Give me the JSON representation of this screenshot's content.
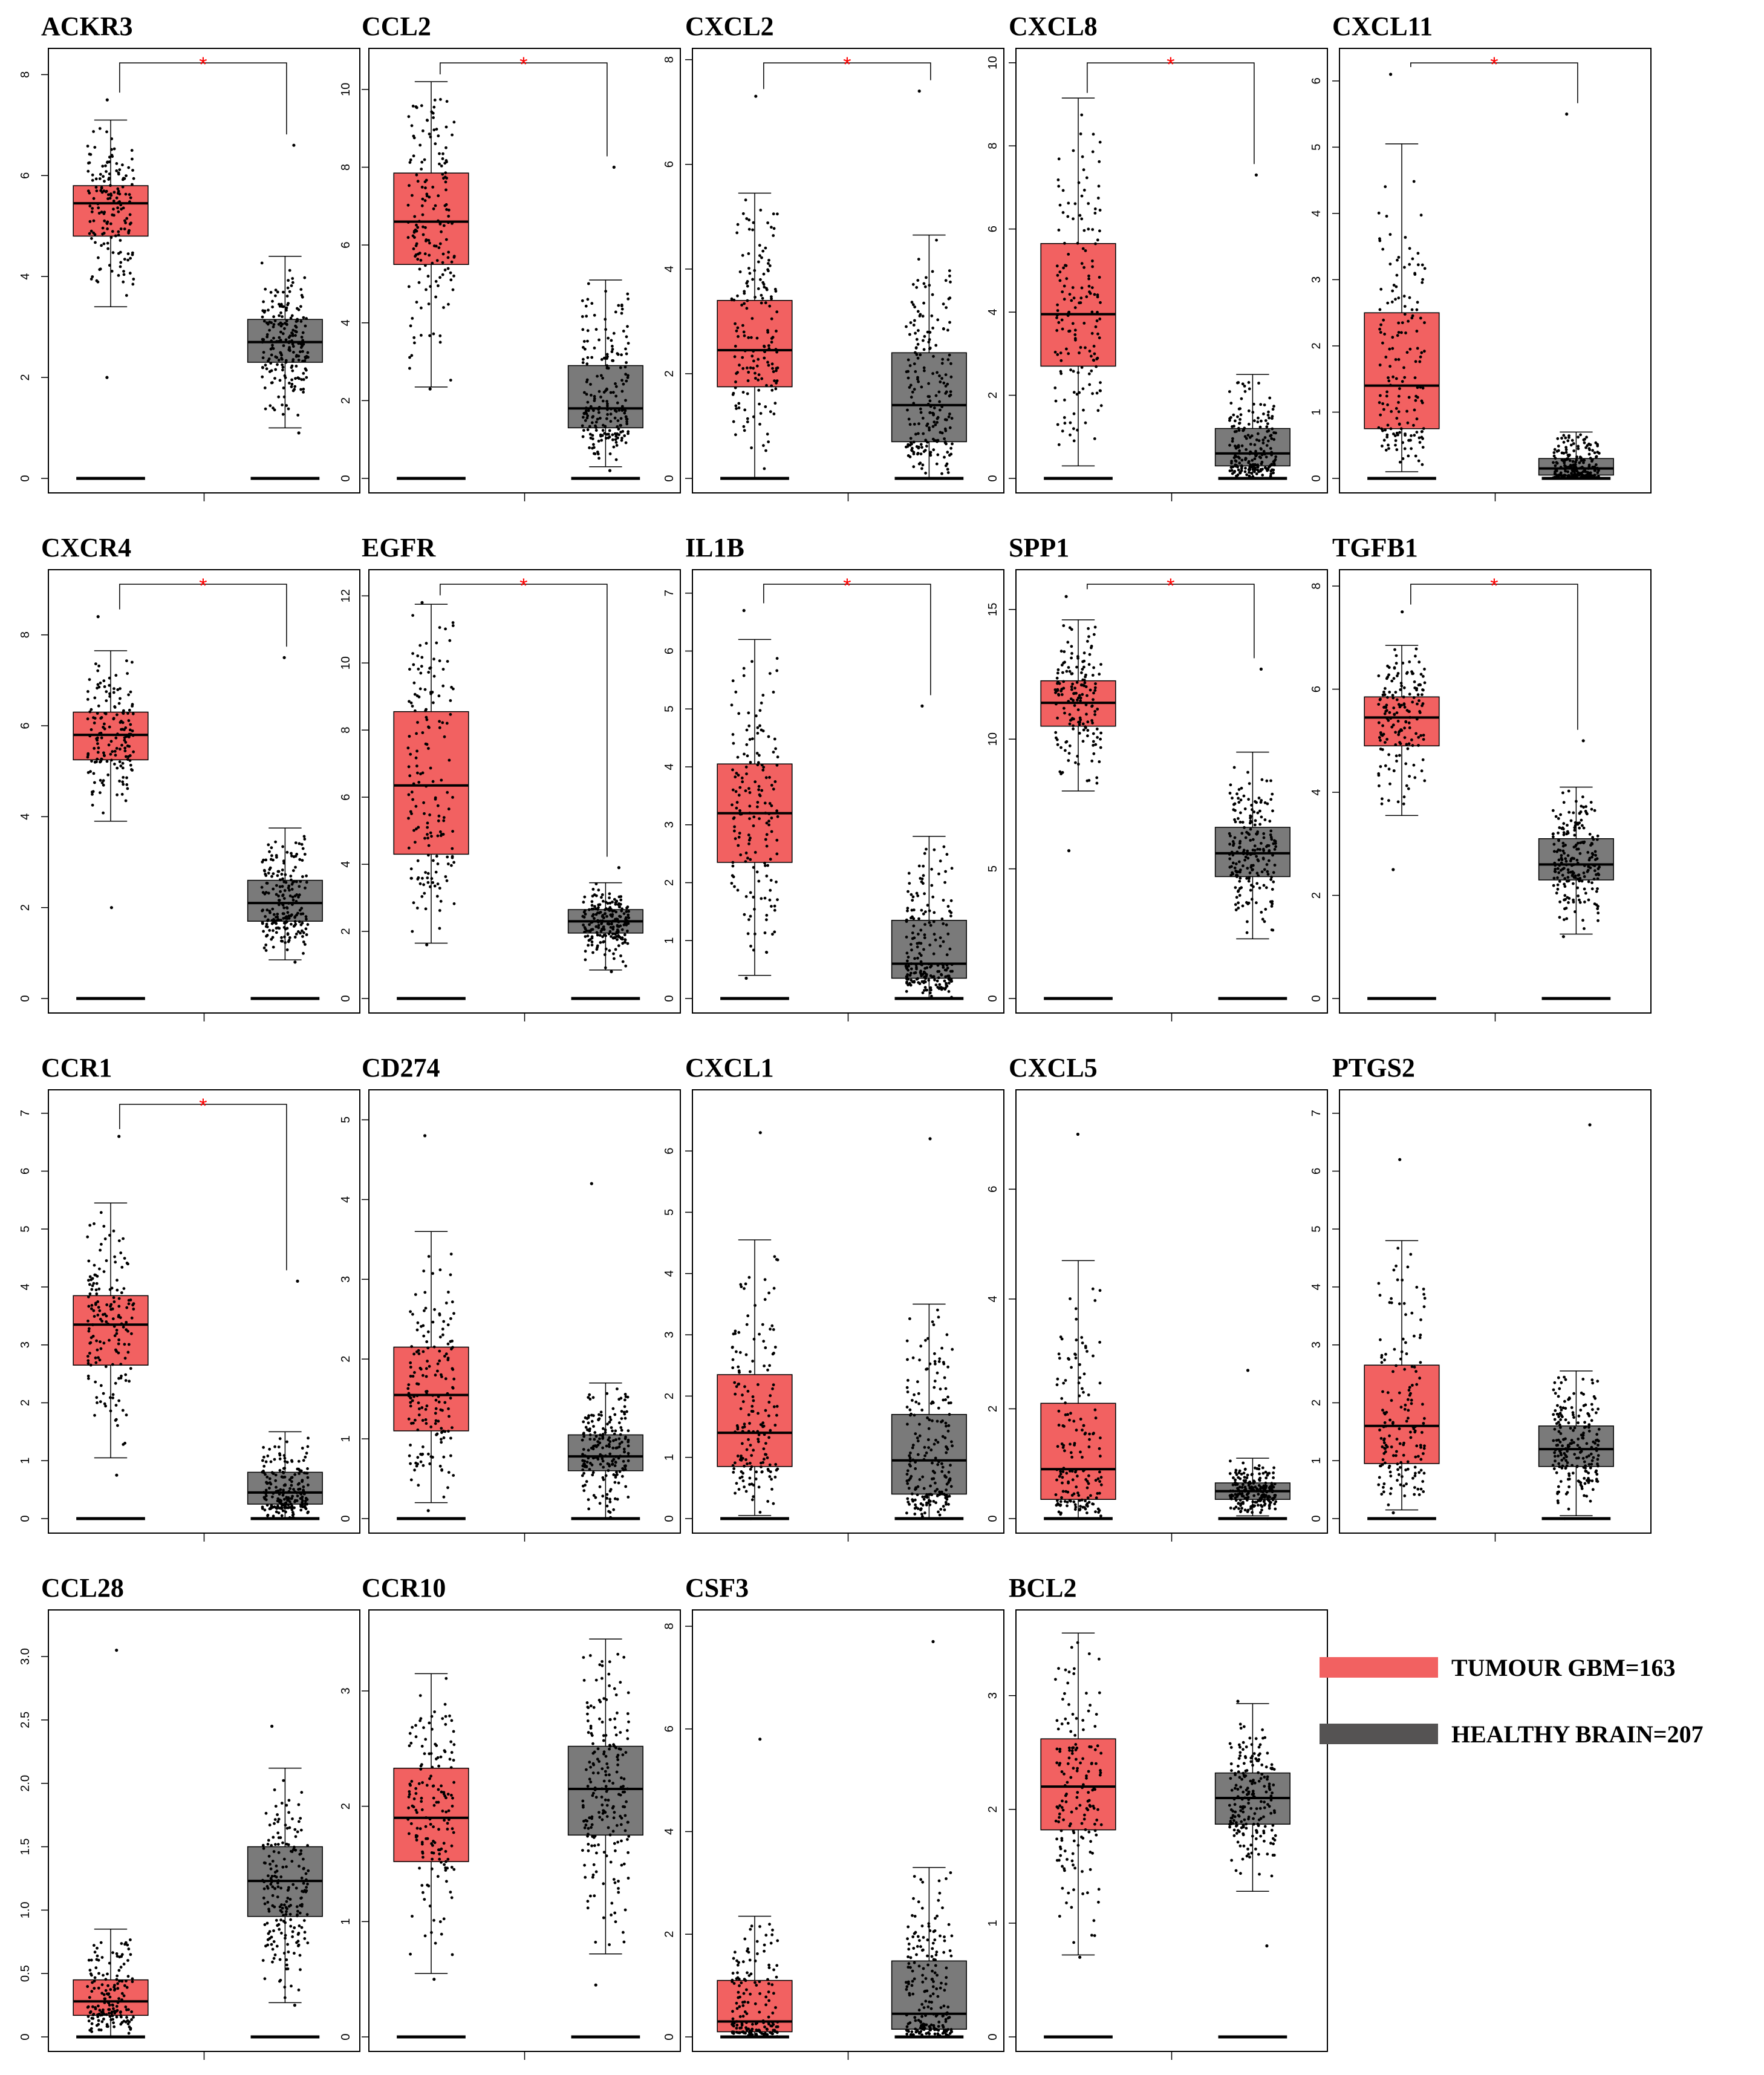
{
  "colors": {
    "tumour": "#f26161",
    "healthy": "#7a7a7a",
    "legend_healthy": "#555353",
    "significance": "#ff0000"
  },
  "legend": [
    {
      "label": "TUMOUR GBM=163",
      "color": "#f26161"
    },
    {
      "label": "HEALTHY BRAIN=207",
      "color": "#555353"
    }
  ],
  "chart_data": [
    {
      "type": "box",
      "title": "ACKR3",
      "significant": true,
      "yticks": [
        "0",
        "2",
        "4",
        "6",
        "8"
      ],
      "ylim": [
        0,
        8.4
      ],
      "tumour": {
        "min": 3.4,
        "q1": 4.8,
        "median": 5.45,
        "q3": 5.8,
        "max": 7.1,
        "range": [
          2.0,
          7.5
        ]
      },
      "healthy": {
        "min": 1.0,
        "q1": 2.3,
        "median": 2.7,
        "q3": 3.15,
        "max": 4.4,
        "range": [
          0.9,
          6.6
        ]
      }
    },
    {
      "type": "box",
      "title": "CCL2",
      "significant": true,
      "yticks": [
        "0",
        "2",
        "4",
        "6",
        "8",
        "10"
      ],
      "ylim": [
        0,
        10.9
      ],
      "tumour": {
        "min": 2.35,
        "q1": 5.5,
        "median": 6.6,
        "q3": 7.85,
        "max": 10.2,
        "range": [
          2.3,
          10.2
        ]
      },
      "healthy": {
        "min": 0.3,
        "q1": 1.3,
        "median": 1.8,
        "q3": 2.9,
        "max": 5.1,
        "range": [
          0.2,
          8.0
        ]
      }
    },
    {
      "type": "box",
      "title": "CXCL2",
      "significant": true,
      "yticks": [
        "0",
        "2",
        "4",
        "6",
        "8"
      ],
      "ylim": [
        0,
        8.1
      ],
      "tumour": {
        "min": 0.0,
        "q1": 1.75,
        "median": 2.45,
        "q3": 3.4,
        "max": 5.45,
        "range": [
          0.0,
          7.3
        ]
      },
      "healthy": {
        "min": 0.0,
        "q1": 0.7,
        "median": 1.4,
        "q3": 2.4,
        "max": 4.65,
        "range": [
          0.0,
          7.4
        ]
      }
    },
    {
      "type": "box",
      "title": "CXCL8",
      "significant": true,
      "yticks": [
        "0",
        "2",
        "4",
        "6",
        "8",
        "10"
      ],
      "ylim": [
        0,
        10.2
      ],
      "tumour": {
        "min": 0.3,
        "q1": 2.7,
        "median": 3.95,
        "q3": 5.65,
        "max": 9.15,
        "range": [
          0.3,
          9.1
        ]
      },
      "healthy": {
        "min": 0.0,
        "q1": 0.3,
        "median": 0.6,
        "q3": 1.2,
        "max": 2.5,
        "range": [
          0.0,
          7.3
        ]
      }
    },
    {
      "type": "box",
      "title": "CXCL11",
      "significant": true,
      "yticks": [
        "0",
        "1",
        "2",
        "3",
        "4",
        "5",
        "6"
      ],
      "ylim": [
        0,
        6.4
      ],
      "tumour": {
        "min": 0.1,
        "q1": 0.75,
        "median": 1.4,
        "q3": 2.5,
        "max": 5.05,
        "range": [
          0.1,
          6.1
        ]
      },
      "healthy": {
        "min": 0.0,
        "q1": 0.05,
        "median": 0.15,
        "q3": 0.3,
        "max": 0.7,
        "range": [
          0.0,
          5.5
        ]
      }
    },
    {
      "type": "box",
      "title": "CXCR4",
      "significant": true,
      "yticks": [
        "0",
        "2",
        "4",
        "6",
        "8"
      ],
      "ylim": [
        0,
        9.3
      ],
      "tumour": {
        "min": 3.9,
        "q1": 5.25,
        "median": 5.8,
        "q3": 6.3,
        "max": 7.65,
        "range": [
          2.0,
          8.4
        ]
      },
      "healthy": {
        "min": 0.85,
        "q1": 1.7,
        "median": 2.1,
        "q3": 2.6,
        "max": 3.75,
        "range": [
          0.8,
          7.5
        ]
      }
    },
    {
      "type": "box",
      "title": "EGFR",
      "significant": true,
      "yticks": [
        "0",
        "2",
        "4",
        "6",
        "8",
        "10",
        "12"
      ],
      "ylim": [
        0,
        12.6
      ],
      "tumour": {
        "min": 1.65,
        "q1": 4.3,
        "median": 6.35,
        "q3": 8.55,
        "max": 11.75,
        "range": [
          1.6,
          11.8
        ]
      },
      "healthy": {
        "min": 0.85,
        "q1": 1.95,
        "median": 2.3,
        "q3": 2.65,
        "max": 3.45,
        "range": [
          0.8,
          3.9
        ]
      }
    },
    {
      "type": "box",
      "title": "IL1B",
      "significant": true,
      "yticks": [
        "0",
        "1",
        "2",
        "3",
        "4",
        "5",
        "6",
        "7"
      ],
      "ylim": [
        0,
        7.3
      ],
      "tumour": {
        "min": 0.4,
        "q1": 2.35,
        "median": 3.2,
        "q3": 4.05,
        "max": 6.2,
        "range": [
          0.35,
          6.7
        ]
      },
      "healthy": {
        "min": 0.0,
        "q1": 0.35,
        "median": 0.6,
        "q3": 1.35,
        "max": 2.8,
        "range": [
          0.0,
          5.05
        ]
      }
    },
    {
      "type": "box",
      "title": "SPP1",
      "significant": true,
      "yticks": [
        "0",
        "5",
        "10",
        "15"
      ],
      "ylim": [
        0,
        16.3
      ],
      "tumour": {
        "min": 8.0,
        "q1": 10.5,
        "median": 11.4,
        "q3": 12.25,
        "max": 14.6,
        "range": [
          5.7,
          15.5
        ]
      },
      "healthy": {
        "min": 2.3,
        "q1": 4.7,
        "median": 5.6,
        "q3": 6.6,
        "max": 9.5,
        "range": [
          2.3,
          12.7
        ]
      }
    },
    {
      "type": "box",
      "title": "TGFB1",
      "significant": true,
      "yticks": [
        "0",
        "2",
        "4",
        "6",
        "8"
      ],
      "ylim": [
        0,
        8.2
      ],
      "tumour": {
        "min": 3.55,
        "q1": 4.9,
        "median": 5.45,
        "q3": 5.85,
        "max": 6.85,
        "range": [
          2.5,
          7.5
        ]
      },
      "healthy": {
        "min": 1.25,
        "q1": 2.3,
        "median": 2.6,
        "q3": 3.1,
        "max": 4.1,
        "range": [
          1.2,
          5.0
        ]
      }
    },
    {
      "type": "box",
      "title": "CCR1",
      "significant": true,
      "yticks": [
        "0",
        "1",
        "2",
        "3",
        "4",
        "5",
        "6",
        "7"
      ],
      "ylim": [
        0,
        7.3
      ],
      "tumour": {
        "min": 1.05,
        "q1": 2.65,
        "median": 3.35,
        "q3": 3.85,
        "max": 5.45,
        "range": [
          0.75,
          6.6
        ]
      },
      "healthy": {
        "min": 0.0,
        "q1": 0.25,
        "median": 0.45,
        "q3": 0.8,
        "max": 1.5,
        "range": [
          0.0,
          4.1
        ]
      }
    },
    {
      "type": "box",
      "title": "CD274",
      "significant": false,
      "yticks": [
        "0",
        "1",
        "2",
        "3",
        "4",
        "5"
      ],
      "ylim": [
        0,
        5.3
      ],
      "tumour": {
        "min": 0.2,
        "q1": 1.1,
        "median": 1.55,
        "q3": 2.15,
        "max": 3.6,
        "range": [
          0.1,
          4.8
        ]
      },
      "healthy": {
        "min": 0.0,
        "q1": 0.6,
        "median": 0.78,
        "q3": 1.05,
        "max": 1.7,
        "range": [
          0.0,
          4.2
        ]
      }
    },
    {
      "type": "box",
      "title": "CXCL1",
      "significant": false,
      "yticks": [
        "0",
        "1",
        "2",
        "3",
        "4",
        "5",
        "6"
      ],
      "ylim": [
        0,
        6.9
      ],
      "tumour": {
        "min": 0.05,
        "q1": 0.85,
        "median": 1.4,
        "q3": 2.35,
        "max": 4.55,
        "range": [
          0.0,
          6.3
        ]
      },
      "healthy": {
        "min": 0.0,
        "q1": 0.4,
        "median": 0.95,
        "q3": 1.7,
        "max": 3.5,
        "range": [
          0.0,
          6.2
        ]
      }
    },
    {
      "type": "box",
      "title": "CXCL5",
      "significant": false,
      "yticks": [
        "0",
        "2",
        "4",
        "6"
      ],
      "ylim": [
        0,
        7.7
      ],
      "tumour": {
        "min": 0.0,
        "q1": 0.35,
        "median": 0.9,
        "q3": 2.1,
        "max": 4.7,
        "range": [
          0.0,
          7.0
        ]
      },
      "healthy": {
        "min": 0.05,
        "q1": 0.35,
        "median": 0.5,
        "q3": 0.65,
        "max": 1.1,
        "range": [
          0.0,
          2.7
        ]
      }
    },
    {
      "type": "box",
      "title": "PTGS2",
      "significant": false,
      "yticks": [
        "0",
        "1",
        "2",
        "3",
        "4",
        "5",
        "6",
        "7"
      ],
      "ylim": [
        0,
        7.3
      ],
      "tumour": {
        "min": 0.15,
        "q1": 0.95,
        "median": 1.6,
        "q3": 2.65,
        "max": 4.8,
        "range": [
          0.1,
          6.2
        ]
      },
      "healthy": {
        "min": 0.05,
        "q1": 0.9,
        "median": 1.2,
        "q3": 1.6,
        "max": 2.55,
        "range": [
          0.0,
          6.8
        ]
      }
    },
    {
      "type": "box",
      "title": "CCL28",
      "significant": false,
      "yticks": [
        "0",
        "0.5",
        "1.0",
        "1.5",
        "2.0",
        "2.5",
        "3.0"
      ],
      "ylim": [
        0,
        3.32
      ],
      "tumour": {
        "min": 0.0,
        "q1": 0.17,
        "median": 0.28,
        "q3": 0.45,
        "max": 0.85,
        "range": [
          0.0,
          3.05
        ]
      },
      "healthy": {
        "min": 0.27,
        "q1": 0.95,
        "median": 1.23,
        "q3": 1.5,
        "max": 2.12,
        "range": [
          0.25,
          2.45
        ]
      }
    },
    {
      "type": "box",
      "title": "CCR10",
      "significant": false,
      "yticks": [
        "0",
        "1",
        "2",
        "3"
      ],
      "ylim": [
        0,
        3.65
      ],
      "tumour": {
        "min": 0.55,
        "q1": 1.52,
        "median": 1.9,
        "q3": 2.33,
        "max": 3.15,
        "range": [
          0.5,
          3.15
        ]
      },
      "healthy": {
        "min": 0.72,
        "q1": 1.75,
        "median": 2.15,
        "q3": 2.52,
        "max": 3.45,
        "range": [
          0.45,
          3.45
        ]
      }
    },
    {
      "type": "box",
      "title": "CSF3",
      "significant": false,
      "yticks": [
        "0",
        "2",
        "4",
        "6",
        "8"
      ],
      "ylim": [
        0,
        8.2
      ],
      "tumour": {
        "min": 0.0,
        "q1": 0.1,
        "median": 0.3,
        "q3": 1.1,
        "max": 2.35,
        "range": [
          0.0,
          5.8
        ]
      },
      "healthy": {
        "min": 0.0,
        "q1": 0.15,
        "median": 0.45,
        "q3": 1.48,
        "max": 3.3,
        "range": [
          0.0,
          7.7
        ]
      }
    },
    {
      "type": "box",
      "title": "BCL2",
      "significant": false,
      "yticks": [
        "0",
        "1",
        "2",
        "3"
      ],
      "ylim": [
        0,
        3.7
      ],
      "tumour": {
        "min": 0.72,
        "q1": 1.82,
        "median": 2.2,
        "q3": 2.62,
        "max": 3.55,
        "range": [
          0.7,
          3.55
        ]
      },
      "healthy": {
        "min": 1.28,
        "q1": 1.87,
        "median": 2.1,
        "q3": 2.32,
        "max": 2.93,
        "range": [
          0.8,
          2.95
        ]
      }
    }
  ]
}
